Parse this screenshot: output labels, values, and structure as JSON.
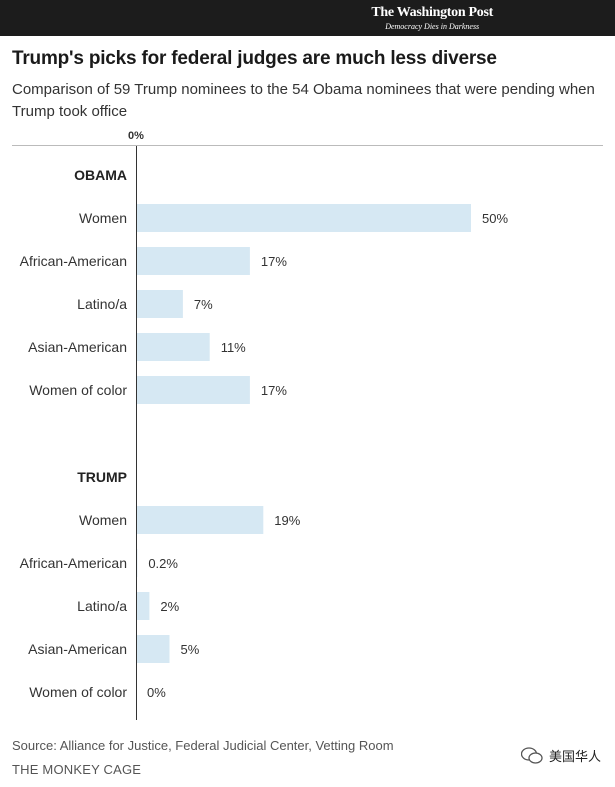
{
  "header": {
    "top_text": "",
    "publication": "The Washington Post",
    "motto": "Democracy Dies in Darkness"
  },
  "title": "Trump's picks for federal judges are much less diverse",
  "subtitle": "Comparison of 59 Trump nominees to the 54 Obama nominees that were pending when Trump took office",
  "footer": {
    "source": "Source: Alliance for Justice, Federal Judicial Center, Vetting Room",
    "credit": "THE MONKEY CAGE",
    "watermark": "美国华人"
  },
  "colors": {
    "bar": "#d6e8f3",
    "axis": "#333333",
    "text": "#333333"
  },
  "chart_data": {
    "type": "bar",
    "orientation": "horizontal",
    "axis_label": "0%",
    "xlim": [
      0,
      50
    ],
    "grid": false,
    "groups": [
      {
        "name": "OBAMA",
        "categories": [
          "Women",
          "African-American",
          "Latino/a",
          "Asian-American",
          "Women of color"
        ],
        "values": [
          50,
          17,
          7,
          11,
          17
        ],
        "labels": [
          "50%",
          "17%",
          "7%",
          "11%",
          "17%"
        ]
      },
      {
        "name": "TRUMP",
        "categories": [
          "Women",
          "African-American",
          "Latino/a",
          "Asian-American",
          "Women of color"
        ],
        "values": [
          19,
          0.2,
          2,
          5,
          0
        ],
        "labels": [
          "19%",
          "0.2%",
          "2%",
          "5%",
          "0%"
        ]
      }
    ]
  }
}
